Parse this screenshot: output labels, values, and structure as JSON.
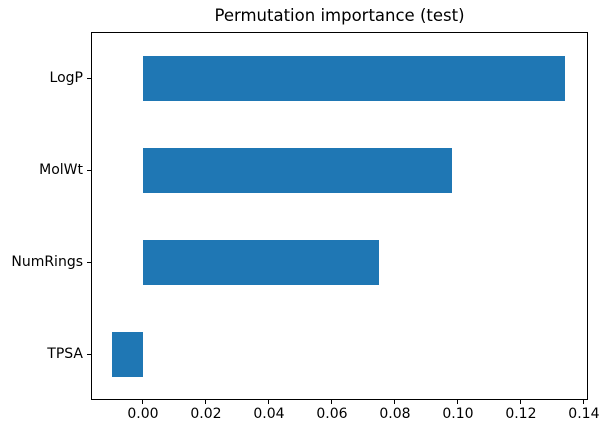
{
  "figure": {
    "background": "#ffffff"
  },
  "chart_data": {
    "type": "bar",
    "orientation": "horizontal",
    "title": "Permutation importance (test)",
    "categories": [
      "LogP",
      "MolWt",
      "NumRings",
      "TPSA"
    ],
    "values": [
      0.134,
      0.098,
      0.075,
      -0.0097
    ],
    "xlabel": "",
    "ylabel": "",
    "xlim": [
      -0.0165,
      0.1413
    ],
    "xticks": [
      0.0,
      0.02,
      0.04,
      0.06,
      0.08,
      0.1,
      0.12,
      0.14
    ],
    "xtick_labels": [
      "0.00",
      "0.02",
      "0.04",
      "0.06",
      "0.08",
      "0.10",
      "0.12",
      "0.14"
    ],
    "bar_color": "#1f77b4",
    "spine_color": "#000000",
    "text_color": "#000000",
    "grid": false,
    "legend": "none"
  }
}
